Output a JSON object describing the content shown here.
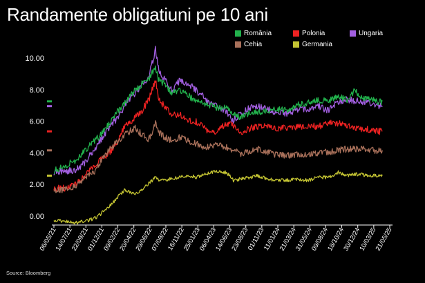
{
  "title": "Randamente obligatiuni pe 10 ani",
  "source": "Source: Bloomberg",
  "chart_data": {
    "type": "line",
    "title": "Randamente obligatiuni pe 10 ani",
    "xlabel": "",
    "ylabel": "",
    "ylim": [
      0,
      11
    ],
    "xlim": [
      0,
      100
    ],
    "yticks": [
      "0.00",
      "2.00",
      "4.00",
      "6.00",
      "8.00",
      "10.00"
    ],
    "ytick_values": [
      0,
      2,
      4,
      6,
      8,
      10
    ],
    "xtick_labels": [
      "06/05/21",
      "14/07/21",
      "22/09/21",
      "01/12/21",
      "09/02/22",
      "20/04/22",
      "29/06/22",
      "07/09/22",
      "16/11/22",
      "25/01/23",
      "06/04/23",
      "14/06/23",
      "23/08/23",
      "01/11/23",
      "11/01/24",
      "21/03/24",
      "31/05/24",
      "09/08/24",
      "18/10/24",
      "30/12/24",
      "10/03/25",
      "21/05/25"
    ],
    "legend": [
      {
        "name": "România",
        "color": "#22b14c"
      },
      {
        "name": "Polonia",
        "color": "#ee2222"
      },
      {
        "name": "Ungaria",
        "color": "#a25fe0"
      },
      {
        "name": "Cehia",
        "color": "#a8705a"
      },
      {
        "name": "Germania",
        "color": "#c4c433"
      }
    ],
    "series": [
      {
        "name": "Ungaria",
        "color": "#a25fe0",
        "points": [
          [
            0,
            2.8
          ],
          [
            3,
            2.9
          ],
          [
            6,
            2.9
          ],
          [
            9,
            3.4
          ],
          [
            12,
            4.3
          ],
          [
            14,
            4.9
          ],
          [
            17,
            5.9
          ],
          [
            19,
            6.2
          ],
          [
            21,
            7.1
          ],
          [
            24,
            7.8
          ],
          [
            26,
            8.4
          ],
          [
            28,
            8.8
          ],
          [
            30,
            10.6
          ],
          [
            31,
            9.2
          ],
          [
            33,
            8.6
          ],
          [
            35,
            7.9
          ],
          [
            37,
            8.6
          ],
          [
            40,
            8.4
          ],
          [
            42,
            8.0
          ],
          [
            45,
            7.4
          ],
          [
            48,
            7.0
          ],
          [
            51,
            6.6
          ],
          [
            53,
            6.1
          ],
          [
            55,
            6.5
          ],
          [
            58,
            6.9
          ],
          [
            60,
            7.0
          ],
          [
            63,
            6.8
          ],
          [
            66,
            6.6
          ],
          [
            69,
            6.5
          ],
          [
            72,
            6.8
          ],
          [
            75,
            6.8
          ],
          [
            78,
            7.0
          ],
          [
            81,
            6.7
          ],
          [
            84,
            7.3
          ],
          [
            87,
            7.4
          ],
          [
            90,
            7.3
          ],
          [
            93,
            7.2
          ],
          [
            96,
            7.0
          ],
          [
            97,
            7.0
          ]
        ]
      },
      {
        "name": "România",
        "color": "#22b14c",
        "points": [
          [
            0,
            2.9
          ],
          [
            3,
            3.2
          ],
          [
            6,
            3.5
          ],
          [
            9,
            4.2
          ],
          [
            12,
            4.8
          ],
          [
            14,
            5.2
          ],
          [
            17,
            6.1
          ],
          [
            19,
            6.7
          ],
          [
            21,
            7.2
          ],
          [
            24,
            8.0
          ],
          [
            26,
            8.4
          ],
          [
            28,
            8.7
          ],
          [
            30,
            9.5
          ],
          [
            31,
            8.6
          ],
          [
            33,
            8.3
          ],
          [
            35,
            7.8
          ],
          [
            37,
            8.1
          ],
          [
            40,
            7.6
          ],
          [
            42,
            7.4
          ],
          [
            45,
            7.1
          ],
          [
            48,
            6.9
          ],
          [
            51,
            7.0
          ],
          [
            53,
            6.5
          ],
          [
            55,
            6.3
          ],
          [
            58,
            6.6
          ],
          [
            60,
            6.6
          ],
          [
            63,
            6.7
          ],
          [
            66,
            6.8
          ],
          [
            69,
            6.7
          ],
          [
            72,
            7.1
          ],
          [
            75,
            7.2
          ],
          [
            78,
            7.4
          ],
          [
            81,
            7.3
          ],
          [
            84,
            7.6
          ],
          [
            87,
            7.4
          ],
          [
            89,
            8.1
          ],
          [
            90,
            7.7
          ],
          [
            93,
            7.4
          ],
          [
            96,
            7.3
          ],
          [
            97,
            7.3
          ]
        ]
      },
      {
        "name": "Polonia",
        "color": "#ee2222",
        "points": [
          [
            0,
            1.8
          ],
          [
            3,
            1.8
          ],
          [
            6,
            2.0
          ],
          [
            9,
            2.5
          ],
          [
            12,
            3.3
          ],
          [
            14,
            3.6
          ],
          [
            17,
            4.2
          ],
          [
            19,
            4.9
          ],
          [
            21,
            5.7
          ],
          [
            24,
            6.3
          ],
          [
            26,
            6.7
          ],
          [
            28,
            7.4
          ],
          [
            30,
            8.6
          ],
          [
            31,
            7.4
          ],
          [
            33,
            6.9
          ],
          [
            35,
            6.4
          ],
          [
            37,
            6.5
          ],
          [
            40,
            6.1
          ],
          [
            42,
            6.0
          ],
          [
            45,
            5.5
          ],
          [
            48,
            5.4
          ],
          [
            51,
            5.9
          ],
          [
            53,
            5.8
          ],
          [
            55,
            5.3
          ],
          [
            58,
            5.6
          ],
          [
            60,
            5.7
          ],
          [
            63,
            5.8
          ],
          [
            66,
            5.6
          ],
          [
            69,
            5.6
          ],
          [
            72,
            5.7
          ],
          [
            75,
            5.8
          ],
          [
            78,
            5.7
          ],
          [
            81,
            5.9
          ],
          [
            84,
            5.9
          ],
          [
            87,
            5.7
          ],
          [
            90,
            5.6
          ],
          [
            93,
            5.5
          ],
          [
            96,
            5.4
          ],
          [
            97,
            5.4
          ]
        ]
      },
      {
        "name": "Cehia",
        "color": "#a8705a",
        "points": [
          [
            0,
            1.7
          ],
          [
            3,
            1.7
          ],
          [
            6,
            1.9
          ],
          [
            9,
            2.4
          ],
          [
            12,
            2.9
          ],
          [
            14,
            3.5
          ],
          [
            17,
            4.4
          ],
          [
            19,
            4.8
          ],
          [
            21,
            5.2
          ],
          [
            24,
            5.6
          ],
          [
            26,
            5.2
          ],
          [
            28,
            4.9
          ],
          [
            30,
            5.9
          ],
          [
            31,
            5.3
          ],
          [
            33,
            5.0
          ],
          [
            35,
            4.8
          ],
          [
            37,
            5.0
          ],
          [
            40,
            4.8
          ],
          [
            42,
            4.6
          ],
          [
            45,
            4.4
          ],
          [
            48,
            4.6
          ],
          [
            51,
            4.4
          ],
          [
            53,
            4.2
          ],
          [
            55,
            4.0
          ],
          [
            58,
            4.1
          ],
          [
            60,
            4.3
          ],
          [
            63,
            4.1
          ],
          [
            66,
            3.9
          ],
          [
            69,
            3.9
          ],
          [
            72,
            3.9
          ],
          [
            75,
            4.0
          ],
          [
            78,
            4.0
          ],
          [
            81,
            4.1
          ],
          [
            84,
            4.2
          ],
          [
            87,
            4.3
          ],
          [
            90,
            4.3
          ],
          [
            93,
            4.2
          ],
          [
            96,
            4.2
          ],
          [
            97,
            4.2
          ]
        ]
      },
      {
        "name": "Germania",
        "color": "#c4c433",
        "points": [
          [
            0,
            -0.2
          ],
          [
            3,
            -0.3
          ],
          [
            6,
            -0.4
          ],
          [
            9,
            -0.3
          ],
          [
            12,
            -0.1
          ],
          [
            14,
            0.2
          ],
          [
            17,
            0.8
          ],
          [
            19,
            1.3
          ],
          [
            21,
            1.7
          ],
          [
            24,
            1.4
          ],
          [
            26,
            1.7
          ],
          [
            28,
            2.1
          ],
          [
            30,
            2.5
          ],
          [
            31,
            2.3
          ],
          [
            33,
            2.3
          ],
          [
            35,
            2.4
          ],
          [
            37,
            2.5
          ],
          [
            40,
            2.6
          ],
          [
            42,
            2.5
          ],
          [
            45,
            2.7
          ],
          [
            48,
            2.9
          ],
          [
            51,
            2.8
          ],
          [
            53,
            2.3
          ],
          [
            55,
            2.4
          ],
          [
            58,
            2.5
          ],
          [
            60,
            2.6
          ],
          [
            63,
            2.4
          ],
          [
            66,
            2.3
          ],
          [
            69,
            2.3
          ],
          [
            72,
            2.4
          ],
          [
            75,
            2.3
          ],
          [
            78,
            2.5
          ],
          [
            81,
            2.5
          ],
          [
            84,
            2.8
          ],
          [
            87,
            2.6
          ],
          [
            90,
            2.7
          ],
          [
            93,
            2.6
          ],
          [
            96,
            2.6
          ],
          [
            97,
            2.6
          ]
        ]
      }
    ],
    "last_value_markers": [
      {
        "name": "Ungaria",
        "value": 7.0,
        "color": "#a25fe0"
      },
      {
        "name": "România",
        "value": 7.3,
        "color": "#22b14c"
      },
      {
        "name": "Polonia",
        "value": 5.4,
        "color": "#ee2222"
      },
      {
        "name": "Cehia",
        "value": 4.2,
        "color": "#a8705a"
      },
      {
        "name": "Germania",
        "value": 2.6,
        "color": "#c4c433"
      }
    ]
  }
}
